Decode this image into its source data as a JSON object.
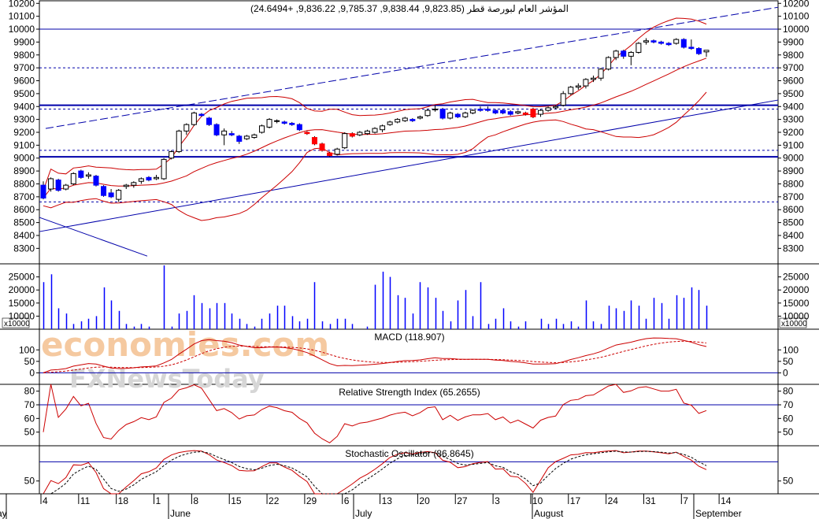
{
  "header": {
    "title": "المؤشر العام لبورصة قطر (9,823.85, 9,838.44, 9,785.37, 9,836.22, +24.6494)"
  },
  "watermark": {
    "line1": "economies.com",
    "line2": "FXNewsToday"
  },
  "colors": {
    "up": "#ffffff",
    "down": "#0000ff",
    "highlight": "#ff0000",
    "band": "#cc0000",
    "line_blue": "#0000aa",
    "grid": "#000000"
  },
  "chart_data": [
    {
      "type": "candlestick",
      "panel": "price",
      "title": "المؤشر العام لبورصة قطر (9,823.85, 9,838.44, 9,785.37, 9,836.22, +24.6494)",
      "ylim": [
        8180,
        10220
      ],
      "y_ticks": [
        8300,
        8400,
        8500,
        8600,
        8700,
        8800,
        8900,
        9000,
        9100,
        9200,
        9300,
        9400,
        9500,
        9600,
        9700,
        9800,
        9900,
        10000,
        10100,
        10200
      ],
      "x_tick_labels": [
        "4",
        "11",
        "18",
        "1",
        "8",
        "15",
        "22",
        "29",
        "6",
        "13",
        "20",
        "27",
        "3",
        "10",
        "17",
        "24",
        "31",
        "7",
        "14"
      ],
      "month_labels": [
        "May",
        "June",
        "July",
        "August",
        "September"
      ],
      "horizontal_levels_solid": [
        10000,
        9410,
        9010
      ],
      "horizontal_levels_dashed": [
        9700,
        9380,
        9060,
        8660
      ],
      "candles": [
        [
          8790,
          8820,
          8680,
          8690,
          "down"
        ],
        [
          8760,
          8850,
          8740,
          8840,
          "up"
        ],
        [
          8830,
          8840,
          8740,
          8750,
          "down"
        ],
        [
          8760,
          8800,
          8750,
          8790,
          "up"
        ],
        [
          8800,
          8890,
          8790,
          8880,
          "up"
        ],
        [
          8900,
          8910,
          8840,
          8850,
          "down"
        ],
        [
          8860,
          8890,
          8840,
          8870,
          "up"
        ],
        [
          8860,
          8870,
          8780,
          8790,
          "down"
        ],
        [
          8780,
          8790,
          8700,
          8710,
          "down"
        ],
        [
          8730,
          8760,
          8690,
          8700,
          "down"
        ],
        [
          8680,
          8760,
          8660,
          8750,
          "up"
        ],
        [
          8780,
          8800,
          8760,
          8790,
          "up"
        ],
        [
          8790,
          8820,
          8770,
          8810,
          "up"
        ],
        [
          8820,
          8850,
          8800,
          8840,
          "up"
        ],
        [
          8850,
          8860,
          8820,
          8830,
          "down"
        ],
        [
          8840,
          8870,
          8830,
          8850,
          "up"
        ],
        [
          8840,
          9000,
          8830,
          8990,
          "up"
        ],
        [
          9000,
          9060,
          8990,
          9050,
          "up"
        ],
        [
          9050,
          9220,
          9040,
          9210,
          "up"
        ],
        [
          9210,
          9270,
          9180,
          9260,
          "up"
        ],
        [
          9260,
          9360,
          9250,
          9350,
          "up"
        ],
        [
          9340,
          9350,
          9320,
          9330,
          "down"
        ],
        [
          9310,
          9320,
          9250,
          9260,
          "down"
        ],
        [
          9260,
          9270,
          9170,
          9180,
          "down"
        ],
        [
          9180,
          9230,
          9100,
          9210,
          "up"
        ],
        [
          9190,
          9210,
          9170,
          9180,
          "down"
        ],
        [
          9170,
          9180,
          9110,
          9130,
          "down"
        ],
        [
          9150,
          9180,
          9140,
          9170,
          "up"
        ],
        [
          9160,
          9190,
          9150,
          9180,
          "up"
        ],
        [
          9200,
          9260,
          9190,
          9250,
          "up"
        ],
        [
          9240,
          9310,
          9230,
          9300,
          "up"
        ],
        [
          9290,
          9300,
          9270,
          9290,
          "up"
        ],
        [
          9280,
          9290,
          9260,
          9270,
          "down"
        ],
        [
          9270,
          9280,
          9250,
          9260,
          "down"
        ],
        [
          9260,
          9270,
          9210,
          9220,
          "down"
        ],
        [
          9200,
          9210,
          9180,
          9190,
          "red"
        ],
        [
          9160,
          9170,
          9100,
          9110,
          "red"
        ],
        [
          9110,
          9120,
          9050,
          9060,
          "red"
        ],
        [
          9040,
          9050,
          9010,
          9020,
          "red"
        ],
        [
          9030,
          9080,
          9020,
          9070,
          "up"
        ],
        [
          9080,
          9200,
          9070,
          9190,
          "up"
        ],
        [
          9190,
          9200,
          9160,
          9170,
          "red"
        ],
        [
          9180,
          9210,
          9170,
          9200,
          "up"
        ],
        [
          9190,
          9220,
          9180,
          9210,
          "up"
        ],
        [
          9200,
          9240,
          9190,
          9230,
          "up"
        ],
        [
          9220,
          9260,
          9200,
          9250,
          "up"
        ],
        [
          9260,
          9290,
          9250,
          9280,
          "up"
        ],
        [
          9280,
          9310,
          9270,
          9300,
          "up"
        ],
        [
          9290,
          9320,
          9280,
          9310,
          "up"
        ],
        [
          9300,
          9310,
          9280,
          9290,
          "down"
        ],
        [
          9310,
          9330,
          9300,
          9320,
          "up"
        ],
        [
          9330,
          9380,
          9320,
          9370,
          "up"
        ],
        [
          9380,
          9410,
          9360,
          9380,
          "up"
        ],
        [
          9380,
          9390,
          9300,
          9310,
          "down"
        ],
        [
          9310,
          9360,
          9300,
          9350,
          "up"
        ],
        [
          9340,
          9350,
          9310,
          9320,
          "down"
        ],
        [
          9320,
          9360,
          9310,
          9350,
          "up"
        ],
        [
          9350,
          9380,
          9340,
          9370,
          "up"
        ],
        [
          9380,
          9400,
          9360,
          9370,
          "down"
        ],
        [
          9370,
          9400,
          9360,
          9380,
          "down"
        ],
        [
          9370,
          9380,
          9340,
          9350,
          "down"
        ],
        [
          9350,
          9380,
          9340,
          9370,
          "down"
        ],
        [
          9360,
          9370,
          9330,
          9340,
          "down"
        ],
        [
          9350,
          9370,
          9340,
          9360,
          "up"
        ],
        [
          9350,
          9360,
          9330,
          9340,
          "red"
        ],
        [
          9380,
          9390,
          9310,
          9320,
          "red"
        ],
        [
          9340,
          9380,
          9320,
          9370,
          "up"
        ],
        [
          9370,
          9400,
          9360,
          9390,
          "up"
        ],
        [
          9390,
          9410,
          9380,
          9400,
          "up"
        ],
        [
          9410,
          9520,
          9400,
          9500,
          "up"
        ],
        [
          9500,
          9560,
          9490,
          9550,
          "up"
        ],
        [
          9550,
          9580,
          9530,
          9560,
          "up"
        ],
        [
          9560,
          9620,
          9540,
          9610,
          "up"
        ],
        [
          9610,
          9640,
          9590,
          9620,
          "up"
        ],
        [
          9620,
          9700,
          9600,
          9690,
          "up"
        ],
        [
          9690,
          9790,
          9680,
          9780,
          "up"
        ],
        [
          9780,
          9840,
          9760,
          9830,
          "up"
        ],
        [
          9830,
          9840,
          9770,
          9790,
          "down"
        ],
        [
          9790,
          9830,
          9720,
          9820,
          "up"
        ],
        [
          9820,
          9900,
          9810,
          9890,
          "up"
        ],
        [
          9900,
          9930,
          9880,
          9910,
          "up"
        ],
        [
          9910,
          9920,
          9890,
          9900,
          "down"
        ],
        [
          9900,
          9910,
          9880,
          9890,
          "down"
        ],
        [
          9880,
          9900,
          9870,
          9890,
          "down"
        ],
        [
          9890,
          9930,
          9880,
          9920,
          "up"
        ],
        [
          9920,
          9930,
          9850,
          9860,
          "down"
        ],
        [
          9860,
          9920,
          9840,
          9850,
          "down"
        ],
        [
          9850,
          9860,
          9800,
          9810,
          "down"
        ],
        [
          9823.85,
          9838.44,
          9785.37,
          9836.22,
          "up"
        ]
      ]
    },
    {
      "type": "bar",
      "panel": "volume",
      "ylim": [
        5000,
        30000
      ],
      "y_ticks": [
        10000,
        15000,
        20000,
        25000
      ],
      "unit_label": "x10000",
      "values": [
        23000,
        26000,
        13000,
        11000,
        7000,
        8000,
        9000,
        10000,
        21000,
        16000,
        12000,
        7000,
        6000,
        7000,
        6000,
        5000,
        31000,
        6000,
        11000,
        12000,
        18000,
        15000,
        13000,
        15000,
        15000,
        11000,
        9000,
        7000,
        6000,
        9000,
        11000,
        14000,
        14000,
        10000,
        8000,
        9000,
        23000,
        8000,
        7000,
        9000,
        9000,
        7000,
        5000,
        6000,
        22000,
        27000,
        25000,
        18000,
        17000,
        11000,
        23000,
        21000,
        17000,
        12000,
        8000,
        16000,
        20000,
        10000,
        23000,
        7000,
        9000,
        13000,
        8000,
        6000,
        8000,
        5000,
        9000,
        7000,
        9000,
        7000,
        8000,
        6000,
        16000,
        8000,
        7000,
        14000,
        13000,
        12000,
        16000,
        14000,
        9000,
        17000,
        15000,
        9000,
        18000,
        17000,
        21000,
        20000,
        14000
      ]
    },
    {
      "type": "line",
      "panel": "macd",
      "title": "MACD (118.907)",
      "ylim": [
        -50,
        190
      ],
      "y_ticks": [
        0,
        50,
        100
      ]
    },
    {
      "type": "line",
      "panel": "rsi",
      "title": "Relative Strength Index (65.2655)",
      "ylim": [
        40,
        85
      ],
      "y_ticks": [
        50,
        60,
        70,
        80
      ],
      "reference_line": 70
    },
    {
      "type": "line",
      "panel": "stochastic",
      "title": "Stochastic Oscillator (86.8645)",
      "ylim": [
        30,
        105
      ],
      "y_ticks": [
        50
      ],
      "reference_line": 80
    }
  ]
}
